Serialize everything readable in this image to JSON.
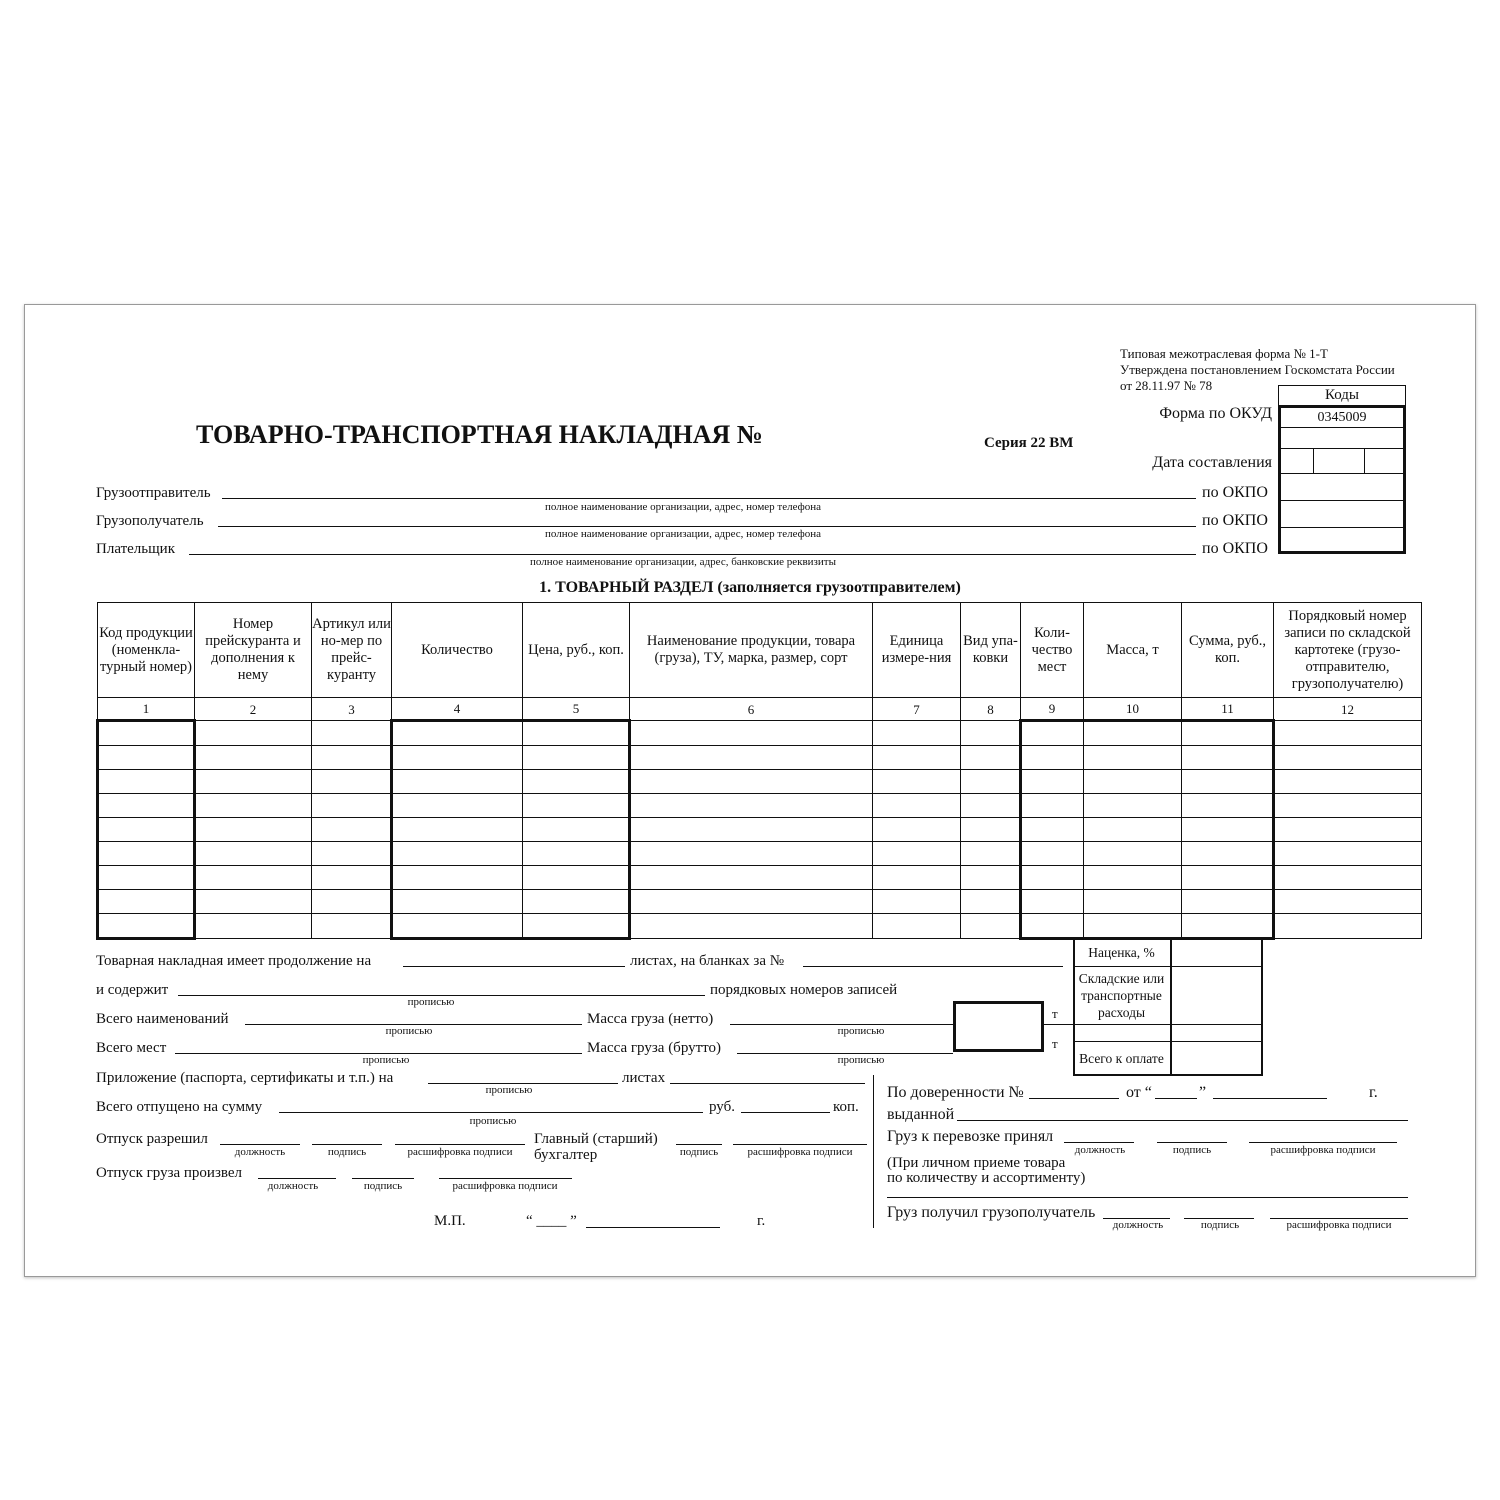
{
  "header": {
    "form_type": "Типовая межотраслевая форма № 1-Т",
    "approved": "Утверждена постановлением Госкомстата России",
    "approved_date": "от 28.11.97 № 78",
    "title": "ТОВАРНО-ТРАНСПОРТНАЯ  НАКЛАДНАЯ  №",
    "series": "Серия 22 ВМ"
  },
  "codes": {
    "label": "Коды",
    "okud_label": "Форма по ОКУД",
    "okud_value": "0345009",
    "date_label": "Дата составления",
    "okpo_label": "по ОКПО"
  },
  "parties": [
    {
      "label": "Грузоотправитель",
      "hint": "полное наименование организации, адрес, номер телефона"
    },
    {
      "label": "Грузополучатель",
      "hint": "полное наименование организации, адрес, номер телефона"
    },
    {
      "label": "Плательщик",
      "hint": "полное наименование организации, адрес, банковские реквизиты"
    }
  ],
  "section_title": "1. ТОВАРНЫЙ РАЗДЕЛ (заполняется грузоотправителем)",
  "table": {
    "columns": [
      {
        "header": "Код продукции (номенкла-турный номер)",
        "num": "1"
      },
      {
        "header": "Номер прейскуранта и дополнения к нему",
        "num": "2"
      },
      {
        "header": "Артикул или но-мер по прейс-куранту",
        "num": "3"
      },
      {
        "header": "Количество",
        "num": "4"
      },
      {
        "header": "Цена, руб., коп.",
        "num": "5"
      },
      {
        "header": "Наименование продукции, товара (груза), ТУ, марка, размер, сорт",
        "num": "6"
      },
      {
        "header": "Единица измере-ния",
        "num": "7"
      },
      {
        "header": "Вид упа-ковки",
        "num": "8"
      },
      {
        "header": "Коли-чество мест",
        "num": "9"
      },
      {
        "header": "Масса, т",
        "num": "10"
      },
      {
        "header": "Сумма, руб., коп.",
        "num": "11"
      },
      {
        "header": "Порядковый номер записи по складской картотеке (грузо-отправителю, грузополучателю)",
        "num": "12"
      }
    ]
  },
  "summary": {
    "markup": "Наценка, %",
    "expenses": "Складские или транспортные расходы",
    "total": "Всего к оплате"
  },
  "bottom_left": {
    "continuation": "Товарная накладная имеет продолжение на",
    "sheets_blanks": "листах, на бланках за №",
    "contains": "и содержит",
    "in_words": "прописью",
    "record_numbers": "порядковых номеров записей",
    "total_items": "Всего наименований",
    "net_mass": "Масса груза (нетто)",
    "total_places": "Всего мест",
    "gross_mass": "Масса груза (брутто)",
    "ton": "т",
    "attachment": "Приложение (паспорта, сертификаты и т.п.) на",
    "sheets": "листах",
    "total_released": "Всего отпущено на сумму",
    "rub": "руб.",
    "kop": "коп.",
    "release_allowed": "Отпуск разрешил",
    "chief_accountant_1": "Главный (старший)",
    "chief_accountant_2": "бухгалтер",
    "released_by": "Отпуск груза произвел",
    "position": "должность",
    "signature": "подпись",
    "signature_decode": "расшифровка подписи",
    "stamp": "М.П.",
    "date_quotes": "“ ____ ”",
    "year": "г."
  },
  "bottom_right": {
    "proxy": "По доверенности №",
    "from": "от “",
    "close_quote": "”",
    "year": "г.",
    "issued": "выданной",
    "accepted": "Груз к перевозке принял",
    "personal_1": "(При личном приеме товара",
    "personal_2": "по количеству и ассортименту)",
    "received": "Груз получил грузополучатель",
    "position": "должность",
    "signature": "подпись",
    "signature_decode": "расшифровка подписи"
  }
}
